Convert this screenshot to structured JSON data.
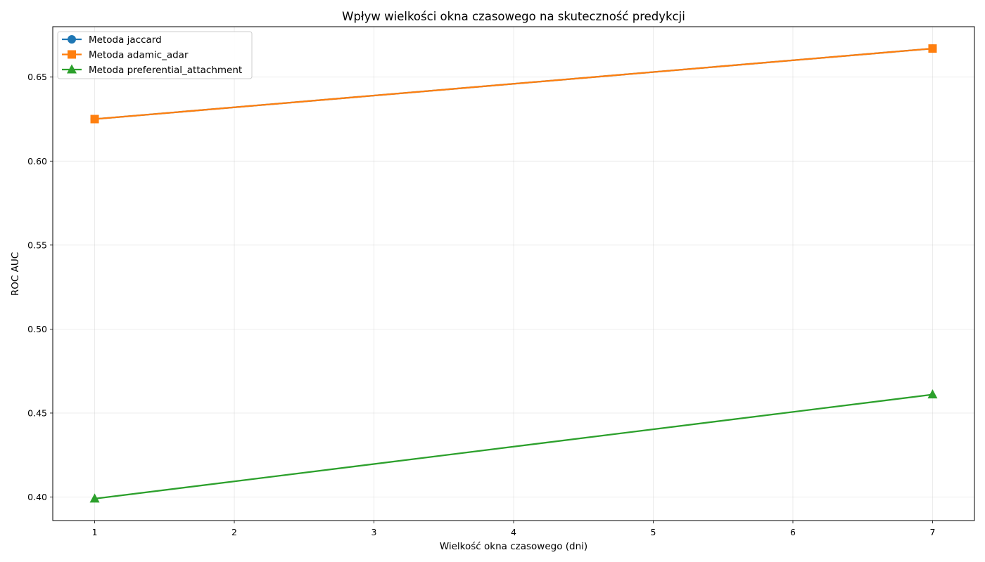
{
  "chart_data": {
    "type": "line",
    "title": "Wpływ wielkości okna czasowego na skuteczność predykcji",
    "xlabel": "Wielkość okna czasowego (dni)",
    "ylabel": "ROC AUC",
    "xlim": [
      0.7,
      7.3
    ],
    "ylim": [
      0.386,
      0.68
    ],
    "xticks": [
      1,
      2,
      3,
      4,
      5,
      6,
      7
    ],
    "yticks": [
      0.4,
      0.45,
      0.5,
      0.55,
      0.6,
      0.65
    ],
    "ytick_labels": [
      "0.40",
      "0.45",
      "0.50",
      "0.55",
      "0.60",
      "0.65"
    ],
    "grid": true,
    "legend_position": "top-left",
    "series": [
      {
        "name": "Metoda jaccard",
        "x": [
          1,
          7
        ],
        "y": [
          0.625,
          0.667
        ],
        "color": "#1f77b4",
        "marker": "circle"
      },
      {
        "name": "Metoda adamic_adar",
        "x": [
          1,
          7
        ],
        "y": [
          0.625,
          0.667
        ],
        "color": "#ff7f0e",
        "marker": "square"
      },
      {
        "name": "Metoda preferential_attachment",
        "x": [
          1,
          7
        ],
        "y": [
          0.399,
          0.461
        ],
        "color": "#2ca02c",
        "marker": "triangle"
      }
    ]
  }
}
